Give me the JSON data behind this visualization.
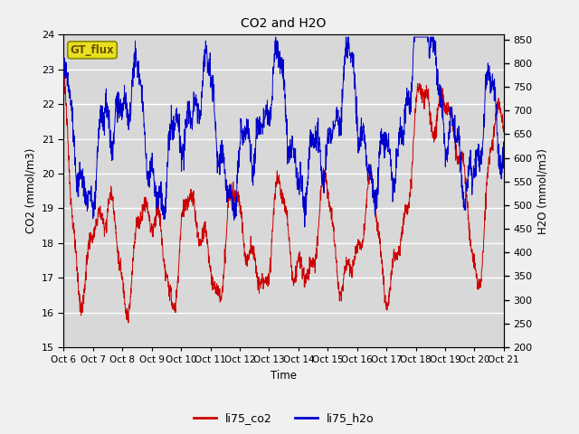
{
  "title": "CO2 and H2O",
  "xlabel": "Time",
  "ylabel_left": "CO2 (mmol/m3)",
  "ylabel_right": "H2O (mmol/m3)",
  "ylim_left": [
    15.0,
    24.0
  ],
  "ylim_right": [
    200,
    860
  ],
  "x_tick_labels": [
    "Oct 6",
    "Oct 7",
    "Oct 8",
    "Oct 9",
    "Oct 10",
    "Oct 11",
    "Oct 12",
    "Oct 13",
    "Oct 14",
    "Oct 15",
    "Oct 16",
    "Oct 17",
    "Oct 18",
    "Oct 19",
    "Oct 20",
    "Oct 21"
  ],
  "color_co2": "#cc0000",
  "color_h2o": "#0000cc",
  "legend_labels": [
    "li75_co2",
    "li75_h2o"
  ],
  "watermark_text": "GT_flux",
  "watermark_bg": "#e8e020",
  "watermark_edge": "#888800",
  "background_color": "#d8d8d8",
  "grid_color": "#ffffff",
  "yticks_left": [
    15.0,
    16.0,
    17.0,
    18.0,
    19.0,
    20.0,
    21.0,
    22.0,
    23.0,
    24.0
  ],
  "yticks_right": [
    200,
    250,
    300,
    350,
    400,
    450,
    500,
    550,
    600,
    650,
    700,
    750,
    800,
    850
  ],
  "fig_width": 6.4,
  "fig_height": 4.8,
  "dpi": 100
}
